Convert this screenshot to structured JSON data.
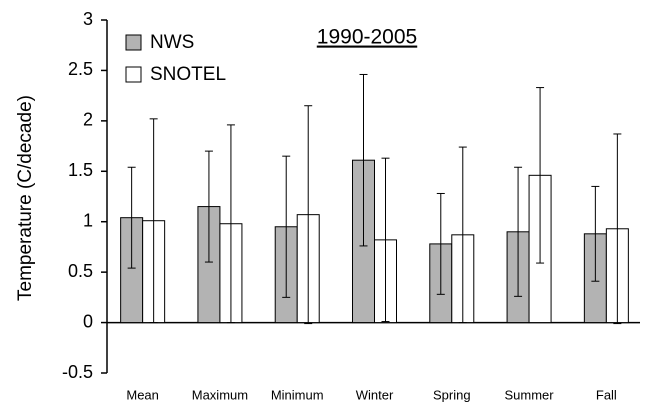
{
  "chart_data": {
    "type": "bar",
    "title": "1990-2005",
    "y_label": "Temperature (C/decade)",
    "categories": [
      "Mean",
      "Maximum",
      "Minimum",
      "Winter",
      "Spring",
      "Summer",
      "Fall"
    ],
    "series": [
      {
        "name": "NWS",
        "color": "#b3b3b3",
        "values": [
          1.04,
          1.15,
          0.95,
          1.61,
          0.78,
          0.9,
          0.88
        ],
        "errors": [
          0.5,
          0.55,
          0.7,
          0.85,
          0.5,
          0.64,
          0.47
        ]
      },
      {
        "name": "SNOTEL",
        "color": "#ffffff",
        "values": [
          1.01,
          0.98,
          1.07,
          0.82,
          0.87,
          1.46,
          0.93
        ],
        "errors": [
          1.01,
          0.98,
          1.08,
          0.81,
          0.87,
          0.87,
          0.94
        ]
      }
    ],
    "ylim": [
      -0.5,
      3
    ],
    "yticks": [
      -0.5,
      0,
      0.5,
      1,
      1.5,
      2,
      2.5,
      3
    ],
    "grid": false,
    "legend": "upper left"
  }
}
